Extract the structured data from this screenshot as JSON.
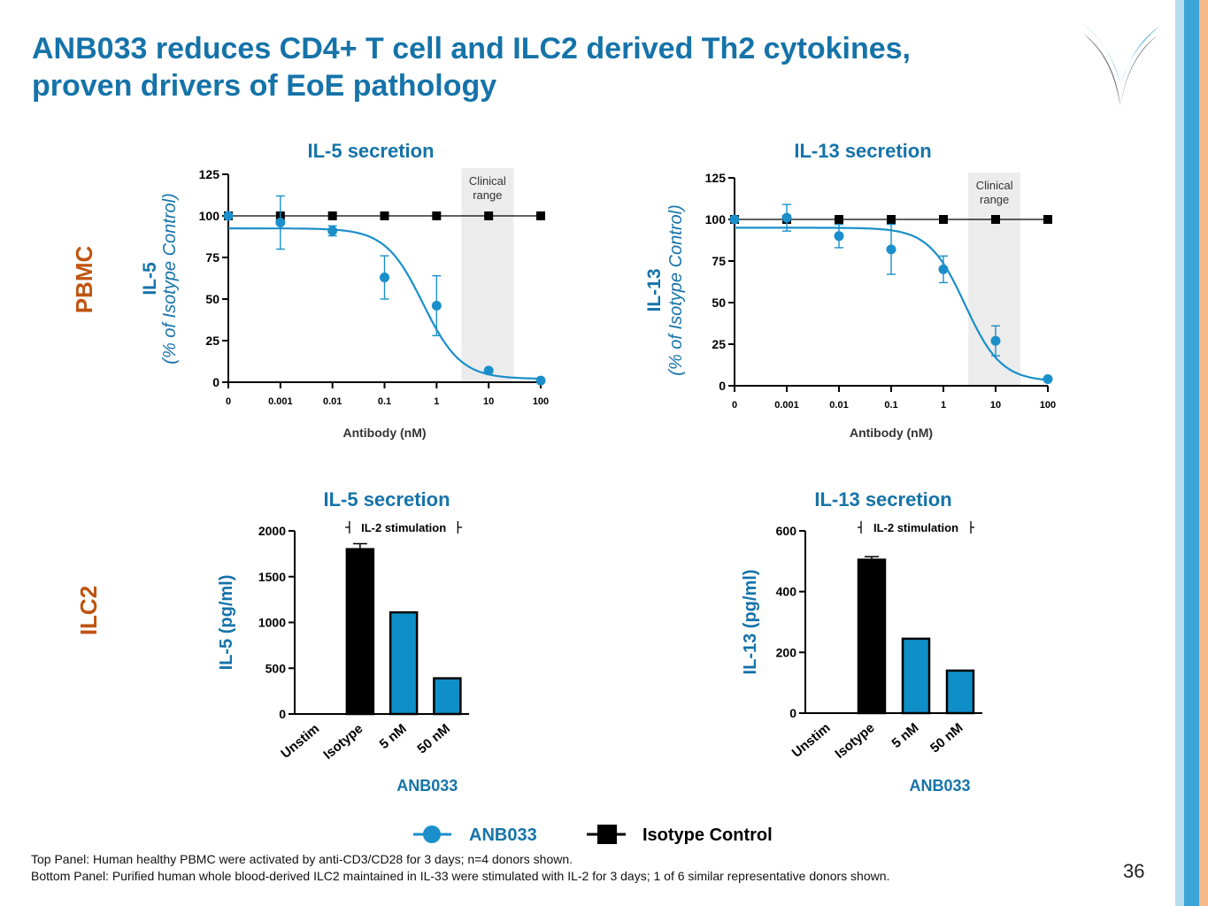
{
  "slide": {
    "title_line1": "ANB033 reduces CD4+ T cell and ILC2 derived Th2 cytokines,",
    "title_line2": "proven drivers of EoE pathology",
    "row_label_top": "PBMC",
    "row_label_bottom": "ILC2",
    "footnote1": "Top Panel: Human healthy PBMC were activated by anti-CD3/CD28 for 3 days; n=4 donors shown.",
    "footnote2": "Bottom Panel: Purified human whole blood-derived ILC2 maintained in IL-33 were stimulated with IL-2 for 3 days; 1 of 6 similar representative donors shown.",
    "page_number": "36",
    "logo_icon": "company-logo-icon"
  },
  "legend": {
    "anb033": "ANB033",
    "isotype": "Isotype Control"
  },
  "colors": {
    "brand_blue": "#1573a9",
    "series_blue": "#1a8fc9",
    "bar_blue": "#0e8fc8",
    "row_label_orange": "#c0530f",
    "clinical_band": "#ececec",
    "sidebar_blue": "#3aa5d6",
    "sidebar_light": "#b7dcee",
    "sidebar_orange": "#f6b98a"
  },
  "chart_data": [
    {
      "id": "pbmc-il5",
      "type": "line",
      "title": "IL-5 secretion",
      "ylabel": "IL-5",
      "ylabel_sub": "(% of Isotype Control)",
      "xlabel": "Antibody (nM)",
      "x": [
        "0",
        "0.001",
        "0.01",
        "0.1",
        "1",
        "10",
        "100"
      ],
      "ylim": [
        0,
        125
      ],
      "yticks": [
        0,
        25,
        50,
        75,
        100,
        125
      ],
      "annotation": {
        "text": [
          "Clinical",
          "range"
        ],
        "x_from": 3,
        "x_to": 30
      },
      "series": [
        {
          "name": "ANB033",
          "values": [
            100,
            96,
            91,
            63,
            46,
            7,
            1
          ],
          "errors": [
            0,
            16,
            3,
            13,
            18,
            0,
            0
          ],
          "fit": {
            "top": 92.5,
            "bottom": 2,
            "ic50": 0.55,
            "hill": 1.2
          }
        },
        {
          "name": "Isotype Control",
          "values": [
            100,
            100,
            100,
            100,
            100,
            100,
            100
          ]
        }
      ]
    },
    {
      "id": "pbmc-il13",
      "type": "line",
      "title": "IL-13 secretion",
      "ylabel": "IL-13",
      "ylabel_sub": "(% of Isotype Control)",
      "xlabel": "Antibody (nM)",
      "x": [
        "0",
        "0.001",
        "0.01",
        "0.1",
        "1",
        "10",
        "100"
      ],
      "ylim": [
        0,
        125
      ],
      "yticks": [
        0,
        25,
        50,
        75,
        100,
        125
      ],
      "annotation": {
        "text": [
          "Clinical",
          "range"
        ],
        "x_from": 3,
        "x_to": 30
      },
      "series": [
        {
          "name": "ANB033",
          "values": [
            100,
            101,
            90,
            82,
            70,
            27,
            4
          ],
          "errors": [
            0,
            8,
            7,
            15,
            8,
            9,
            0
          ],
          "fit": {
            "top": 95,
            "bottom": 2.5,
            "ic50": 2.6,
            "hill": 1.25
          }
        },
        {
          "name": "Isotype Control",
          "values": [
            100,
            100,
            100,
            100,
            100,
            100,
            100
          ]
        }
      ]
    },
    {
      "id": "ilc2-il5",
      "type": "bar",
      "title": "IL-5 secretion",
      "ylabel": "IL-5 (pg/ml)",
      "categories": [
        "Unstim",
        "Isotype",
        "5 nM",
        "50 nM"
      ],
      "values": [
        0,
        1800,
        1110,
        390
      ],
      "errors": [
        0,
        60,
        0,
        0
      ],
      "bar_colors": [
        "#000000",
        "#000000",
        "#0e8fc8",
        "#0e8fc8"
      ],
      "ylim": [
        0,
        2000
      ],
      "yticks": [
        0,
        500,
        1000,
        1500,
        2000
      ],
      "bracket_label": "IL-2 stimulation",
      "group_label": "ANB033"
    },
    {
      "id": "ilc2-il13",
      "type": "bar",
      "title": "IL-13 secretion",
      "ylabel": "IL-13 (pg/ml)",
      "categories": [
        "Unstim",
        "Isotype",
        "5 nM",
        "50 nM"
      ],
      "values": [
        0,
        505,
        245,
        140
      ],
      "errors": [
        0,
        10,
        0,
        0
      ],
      "bar_colors": [
        "#000000",
        "#000000",
        "#0e8fc8",
        "#0e8fc8"
      ],
      "ylim": [
        0,
        600
      ],
      "yticks": [
        0,
        200,
        400,
        600
      ],
      "bracket_label": "IL-2 stimulation",
      "group_label": "ANB033"
    }
  ]
}
